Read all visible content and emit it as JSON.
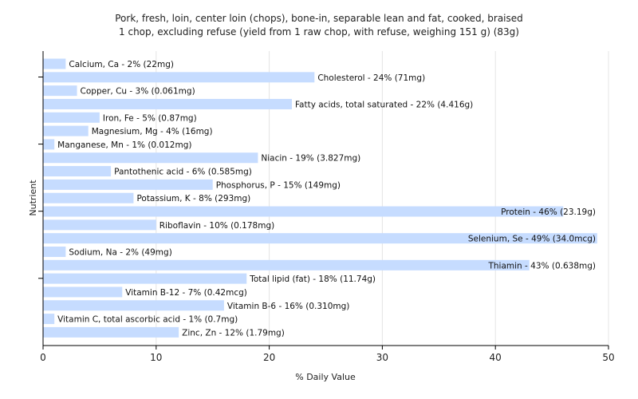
{
  "chart_data": {
    "type": "bar",
    "orientation": "horizontal",
    "title_line1": "Pork, fresh, loin, center loin (chops), bone-in, separable lean and fat, cooked, braised",
    "title_line2": "1 chop, excluding refuse (yield from 1 raw chop, with refuse, weighing 151 g) (83g)",
    "xlabel": "% Daily Value",
    "ylabel": "Nutrient",
    "xlim": [
      0,
      50
    ],
    "xticks": [
      "0",
      "10",
      "20",
      "30",
      "40",
      "50"
    ],
    "grid": true,
    "bar_color": "#c6dcff",
    "categories": [
      "Calcium, Ca - 2% (22mg)",
      "Cholesterol - 24% (71mg)",
      "Copper, Cu - 3% (0.061mg)",
      "Fatty acids, total saturated - 22% (4.416g)",
      "Iron, Fe - 5% (0.87mg)",
      "Magnesium, Mg - 4% (16mg)",
      "Manganese, Mn - 1% (0.012mg)",
      "Niacin - 19% (3.827mg)",
      "Pantothenic acid - 6% (0.585mg)",
      "Phosphorus, P - 15% (149mg)",
      "Potassium, K - 8% (293mg)",
      "Protein - 46% (23.19g)",
      "Riboflavin - 10% (0.178mg)",
      "Selenium, Se - 49% (34.0mcg)",
      "Sodium, Na - 2% (49mg)",
      "Thiamin - 43% (0.638mg)",
      "Total lipid (fat) - 18% (11.74g)",
      "Vitamin B-12 - 7% (0.42mcg)",
      "Vitamin B-6 - 16% (0.310mg)",
      "Vitamin C, total ascorbic acid - 1% (0.7mg)",
      "Zinc, Zn - 12% (1.79mg)"
    ],
    "values": [
      2,
      24,
      3,
      22,
      5,
      4,
      1,
      19,
      6,
      15,
      8,
      46,
      10,
      49,
      2,
      43,
      18,
      7,
      16,
      1,
      12
    ]
  }
}
